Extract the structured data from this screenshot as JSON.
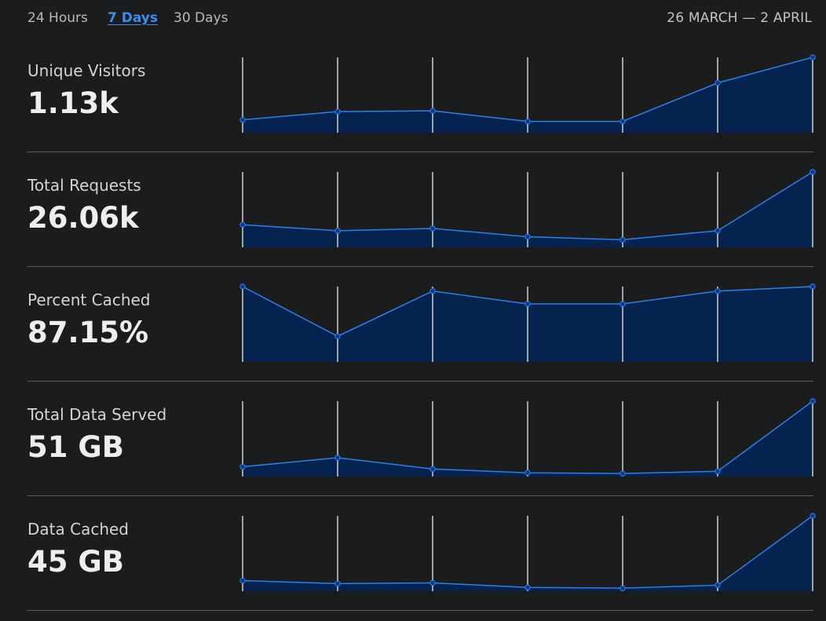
{
  "tabs": [
    {
      "label": "24 Hours",
      "active": false
    },
    {
      "label": "7 Days",
      "active": true
    },
    {
      "label": "30 Days",
      "active": false
    }
  ],
  "date_range": "26 MARCH — 2 APRIL",
  "colors": {
    "background": "#1b1c1e",
    "accent": "#3b8ef0",
    "area_fill": "#06224f",
    "line": "#2f7fe6",
    "gridline": "#cfcfcf",
    "divider": "#5a5a5a"
  },
  "metrics": [
    {
      "label": "Unique Visitors",
      "value": "1.13k",
      "series": [
        0.17,
        0.28,
        0.29,
        0.15,
        0.15,
        0.66,
        1.0
      ]
    },
    {
      "label": "Total Requests",
      "value": "26.06k",
      "series": [
        0.3,
        0.22,
        0.25,
        0.14,
        0.1,
        0.22,
        1.0
      ]
    },
    {
      "label": "Percent Cached",
      "value": "87.15%",
      "series": [
        1.0,
        0.34,
        0.94,
        0.77,
        0.77,
        0.94,
        1.0
      ]
    },
    {
      "label": "Total Data Served",
      "value": "51 GB",
      "series": [
        0.13,
        0.25,
        0.1,
        0.05,
        0.04,
        0.07,
        1.0
      ]
    },
    {
      "label": "Data Cached",
      "value": "45 GB",
      "series": [
        0.14,
        0.1,
        0.11,
        0.05,
        0.04,
        0.08,
        1.0
      ]
    }
  ]
}
